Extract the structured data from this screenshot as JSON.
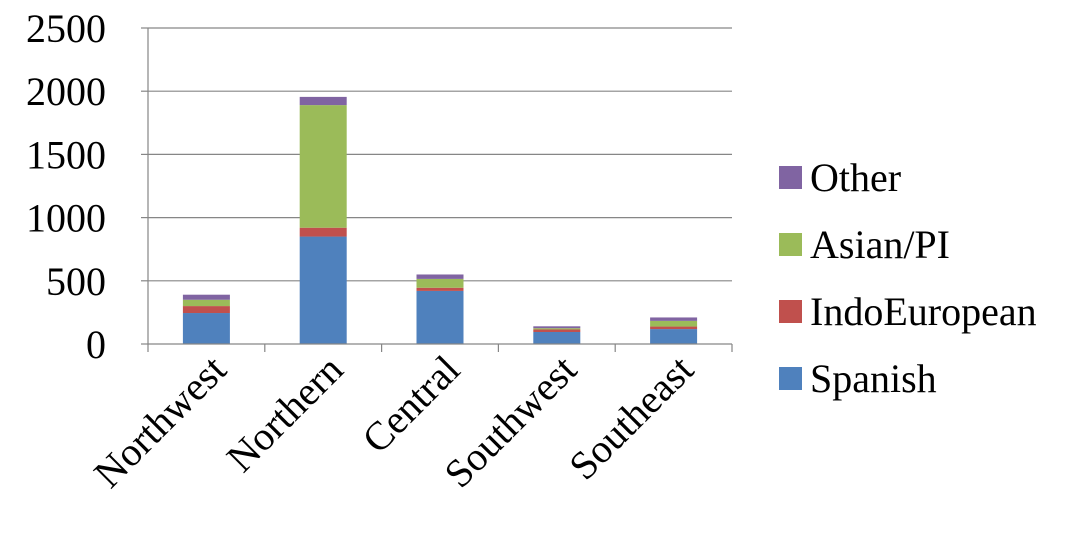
{
  "chart_data": {
    "type": "bar",
    "stacked": true,
    "title": "",
    "xlabel": "",
    "ylabel": "",
    "categories": [
      "Northwest",
      "Northern",
      "Central",
      "Southwest",
      "Southeast"
    ],
    "series": [
      {
        "name": "Spanish",
        "color": "#4F81BD",
        "values": [
          245,
          850,
          420,
          95,
          118
        ]
      },
      {
        "name": "IndoEuropean",
        "color": "#C0504D",
        "values": [
          55,
          70,
          25,
          20,
          20
        ]
      },
      {
        "name": "Asian/PI",
        "color": "#9BBB59",
        "values": [
          50,
          970,
          70,
          10,
          45
        ]
      },
      {
        "name": "Other",
        "color": "#8064A2",
        "values": [
          40,
          65,
          35,
          15,
          27
        ]
      }
    ],
    "ylim": [
      0,
      2500
    ],
    "yticks": [
      0,
      500,
      1000,
      1500,
      2000,
      2500
    ],
    "grid": true,
    "legend_position": "right"
  }
}
